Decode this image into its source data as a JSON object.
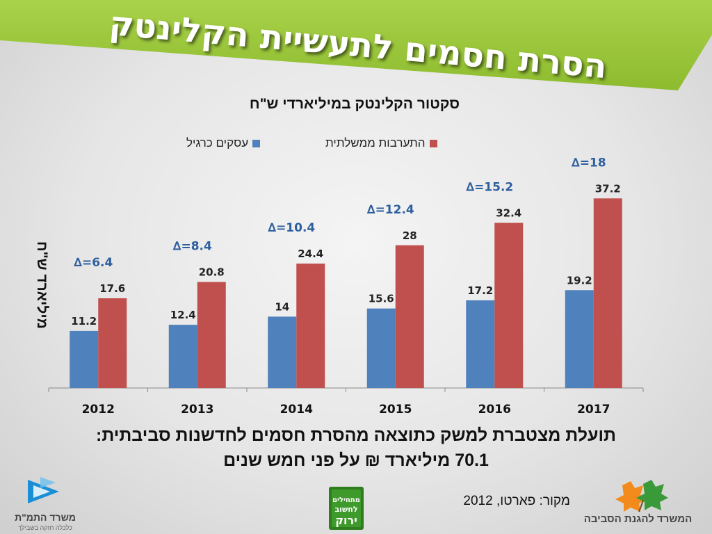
{
  "slide": {
    "title": "הסרת חסמים לתעשיית הקלינטק",
    "summary_line1": "תועלת מצטברת למשק כתוצאה מהסרת חסמים לחדשנות סביבתית:",
    "summary_line2": "70.1 מיליארד ₪ על פני חמש שנים",
    "source": "מקור: פארטו, 2012"
  },
  "logos": {
    "left_name": "משרד התמ\"ת",
    "left_tagline": "כלכלה חזקה בשבילך",
    "middle_text": "מתחילים לחשוב ירוק",
    "right_name": "המשרד להגנת הסביבה"
  },
  "colors": {
    "banner": "#8dbb2e",
    "series_regular": "#4f81bd",
    "series_gov": "#c0504d",
    "delta": "#2e5f9e"
  },
  "chart_data": {
    "type": "bar",
    "title": "סקטור הקלינטק במיליארדי ש\"ח",
    "xlabel": "",
    "ylabel": "מיליארד ש\"ח",
    "ylim": [
      0,
      40
    ],
    "grid": false,
    "legend_position": "top",
    "categories": [
      "2012",
      "2013",
      "2014",
      "2015",
      "2016",
      "2017"
    ],
    "series": [
      {
        "name": "עסקים כרגיל",
        "values": [
          11.2,
          12.4,
          14,
          15.6,
          17.2,
          19.2
        ]
      },
      {
        "name": "התערבות ממשלתית",
        "values": [
          17.6,
          20.8,
          24.4,
          28,
          32.4,
          37.2
        ]
      }
    ],
    "annotations": [
      "∆=6.4",
      "∆=8.4",
      "∆=10.4",
      "∆=12.4",
      "∆=15.2",
      "∆=18"
    ]
  }
}
